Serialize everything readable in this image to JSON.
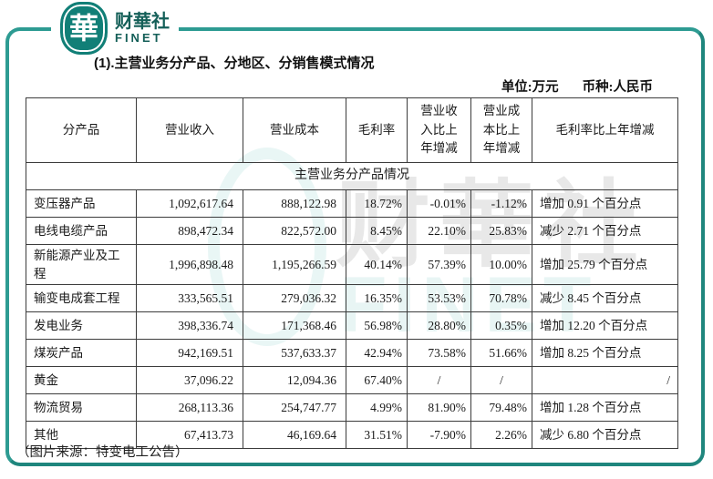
{
  "logo": {
    "seal_char": "華",
    "name_cn": "财華社",
    "name_en": "FINET"
  },
  "header": {
    "title": "(1).主营业务分产品、分地区、分销售模式情况",
    "unit_label": "单位:万元",
    "currency_label": "币种:人民币"
  },
  "table": {
    "caption": "主营业务分产品情况",
    "columns": [
      "分产品",
      "营业收入",
      "营业成本",
      "毛利率",
      "营业收入比上年增减",
      "营业成本比上年增减",
      "毛利率比上年增减"
    ],
    "rows": [
      [
        "变压器产品",
        "1,092,617.64",
        "888,122.98",
        "18.72%",
        "-0.01%",
        "-1.12%",
        "增加 0.91 个百分点"
      ],
      [
        "电线电缆产品",
        "898,472.34",
        "822,572.00",
        "8.45%",
        "22.10%",
        "25.83%",
        "减少 2.71 个百分点"
      ],
      [
        "新能源产业及工程",
        "1,996,898.48",
        "1,195,266.59",
        "40.14%",
        "57.39%",
        "10.00%",
        "增加 25.79 个百分点"
      ],
      [
        "输变电成套工程",
        "333,565.51",
        "279,036.32",
        "16.35%",
        "53.53%",
        "70.78%",
        "减少 8.45 个百分点"
      ],
      [
        "发电业务",
        "398,336.74",
        "171,368.46",
        "56.98%",
        "28.80%",
        "0.35%",
        "增加 12.20 个百分点"
      ],
      [
        "煤炭产品",
        "942,169.51",
        "537,633.37",
        "42.94%",
        "73.58%",
        "51.66%",
        "增加 8.25 个百分点"
      ],
      [
        "黄金",
        "37,096.22",
        "12,094.36",
        "67.40%",
        "/",
        "/",
        "/"
      ],
      [
        "物流贸易",
        "268,113.36",
        "254,747.77",
        "4.99%",
        "81.90%",
        "79.48%",
        "增加 1.28 个百分点"
      ],
      [
        "其他",
        "67,413.73",
        "46,169.64",
        "31.51%",
        "-7.90%",
        "2.26%",
        "减少 6.80 个百分点"
      ]
    ]
  },
  "watermark": {
    "text_cn": "财華社",
    "text_en": "FINET"
  },
  "footer": {
    "source": "（图片来源：特变电工公告）"
  },
  "colors": {
    "frame_teal": "#2d9b92",
    "seal_teal": "#117f77",
    "brand_text": "#145f58",
    "table_border": "#3c3c3c"
  }
}
